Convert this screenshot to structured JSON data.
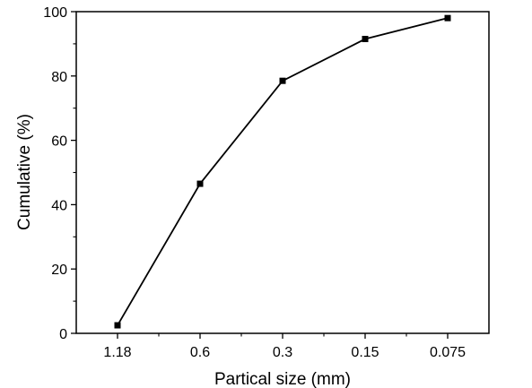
{
  "chart_data": {
    "type": "line",
    "title": "",
    "xlabel": "Partical size (mm)",
    "ylabel": "Cumulative (%)",
    "categories": [
      "1.18",
      "0.6",
      "0.3",
      "0.15",
      "0.075"
    ],
    "series": [
      {
        "values": [
          2.5,
          46.5,
          78.5,
          91.5,
          98
        ]
      }
    ],
    "ylim": [
      0,
      100
    ],
    "yticks": [
      "0",
      "20",
      "40",
      "60",
      "80",
      "100"
    ],
    "marker": "square",
    "grid": false,
    "legend": "none",
    "colors": {
      "line": "#000000",
      "marker": "#000000",
      "axis": "#000000",
      "background": "#ffffff"
    }
  }
}
